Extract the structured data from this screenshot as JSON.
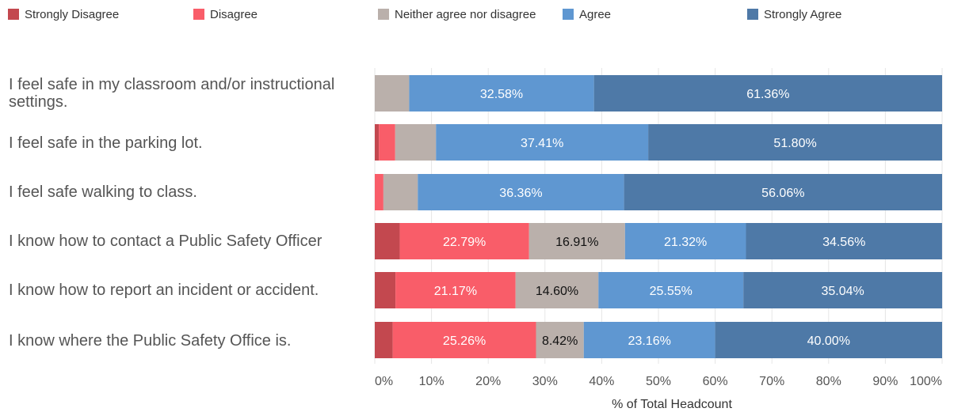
{
  "legend": [
    {
      "label": "Strongly Disagree",
      "color": "#c3484f"
    },
    {
      "label": "Disagree",
      "color": "#f95d69"
    },
    {
      "label": "Neither agree nor disagree",
      "color": "#bab0ab"
    },
    {
      "label": "Agree",
      "color": "#5f97d1"
    },
    {
      "label": "Strongly Agree",
      "color": "#4e79a7"
    }
  ],
  "chart_data": {
    "type": "bar",
    "orientation": "horizontal",
    "stacked": "100%",
    "categories": [
      "I feel safe in my classroom and/or instructional settings.",
      "I feel safe in the parking lot.",
      "I feel safe walking to class.",
      "I know how to contact a Public Safety Officer",
      "I know how to report an incident or accident.",
      "I know where the Public Safety Office is."
    ],
    "series": [
      {
        "name": "Strongly Disagree",
        "color": "#c3484f",
        "values": [
          0,
          0.72,
          0,
          4.41,
          3.65,
          3.16
        ],
        "labels": [
          "",
          "",
          "",
          "",
          "",
          ""
        ]
      },
      {
        "name": "Disagree",
        "color": "#f95d69",
        "values": [
          0,
          2.88,
          1.52,
          22.79,
          21.17,
          25.26
        ],
        "labels": [
          "",
          "",
          "",
          "22.79%",
          "21.17%",
          "25.26%"
        ]
      },
      {
        "name": "Neither agree nor disagree",
        "color": "#bab0ab",
        "values": [
          6.06,
          7.19,
          6.06,
          16.91,
          14.6,
          8.42
        ],
        "labels": [
          "",
          "",
          "",
          "16.91%",
          "14.60%",
          "8.42%"
        ]
      },
      {
        "name": "Agree",
        "color": "#5f97d1",
        "values": [
          32.58,
          37.41,
          36.36,
          21.32,
          25.55,
          23.16
        ],
        "labels": [
          "32.58%",
          "37.41%",
          "36.36%",
          "21.32%",
          "25.55%",
          "23.16%"
        ]
      },
      {
        "name": "Strongly Agree",
        "color": "#4e79a7",
        "values": [
          61.36,
          51.8,
          56.06,
          34.56,
          35.04,
          40.0
        ],
        "labels": [
          "61.36%",
          "51.80%",
          "56.06%",
          "34.56%",
          "35.04%",
          "40.00%"
        ]
      }
    ],
    "xlabel": "% of Total Headcount",
    "xlim": [
      0,
      100
    ],
    "xticks": [
      "0%",
      "10%",
      "20%",
      "30%",
      "40%",
      "50%",
      "60%",
      "70%",
      "80%",
      "90%",
      "100%"
    ],
    "grid": true,
    "legend_position": "top"
  }
}
